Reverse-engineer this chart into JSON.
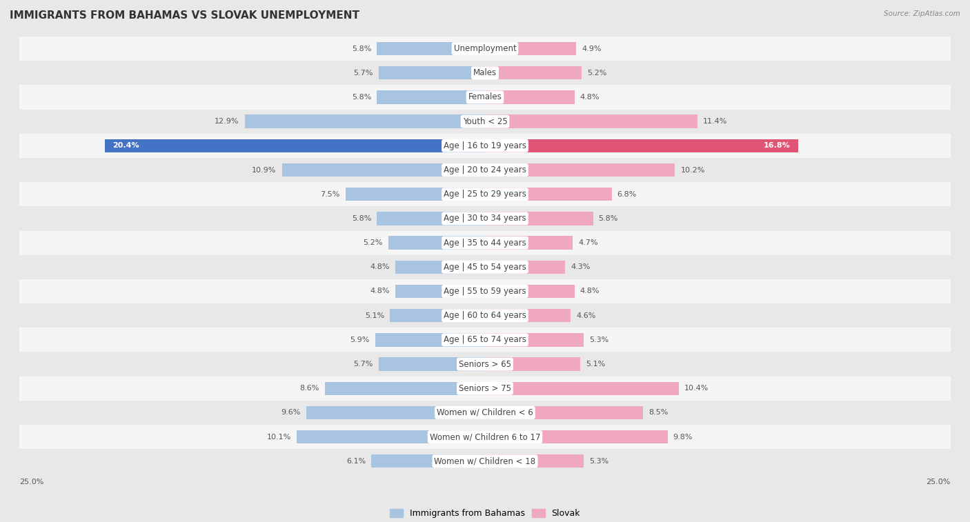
{
  "title": "IMMIGRANTS FROM BAHAMAS VS SLOVAK UNEMPLOYMENT",
  "source": "Source: ZipAtlas.com",
  "categories": [
    "Unemployment",
    "Males",
    "Females",
    "Youth < 25",
    "Age | 16 to 19 years",
    "Age | 20 to 24 years",
    "Age | 25 to 29 years",
    "Age | 30 to 34 years",
    "Age | 35 to 44 years",
    "Age | 45 to 54 years",
    "Age | 55 to 59 years",
    "Age | 60 to 64 years",
    "Age | 65 to 74 years",
    "Seniors > 65",
    "Seniors > 75",
    "Women w/ Children < 6",
    "Women w/ Children 6 to 17",
    "Women w/ Children < 18"
  ],
  "left_values": [
    5.8,
    5.7,
    5.8,
    12.9,
    20.4,
    10.9,
    7.5,
    5.8,
    5.2,
    4.8,
    4.8,
    5.1,
    5.9,
    5.7,
    8.6,
    9.6,
    10.1,
    6.1
  ],
  "right_values": [
    4.9,
    5.2,
    4.8,
    11.4,
    16.8,
    10.2,
    6.8,
    5.8,
    4.7,
    4.3,
    4.8,
    4.6,
    5.3,
    5.1,
    10.4,
    8.5,
    9.8,
    5.3
  ],
  "left_color": "#a8c4e0",
  "right_color": "#f0a8be",
  "highlight_left_color": "#4472c4",
  "highlight_right_color": "#e05575",
  "highlight_index": 4,
  "xlim": 25.0,
  "background_color": "#e8e8e8",
  "row_color_even": "#f5f5f5",
  "row_color_odd": "#e8e8e8",
  "legend_left": "Immigrants from Bahamas",
  "legend_right": "Slovak",
  "title_fontsize": 11,
  "label_fontsize": 8.5,
  "value_fontsize": 8,
  "source_fontsize": 7.5
}
